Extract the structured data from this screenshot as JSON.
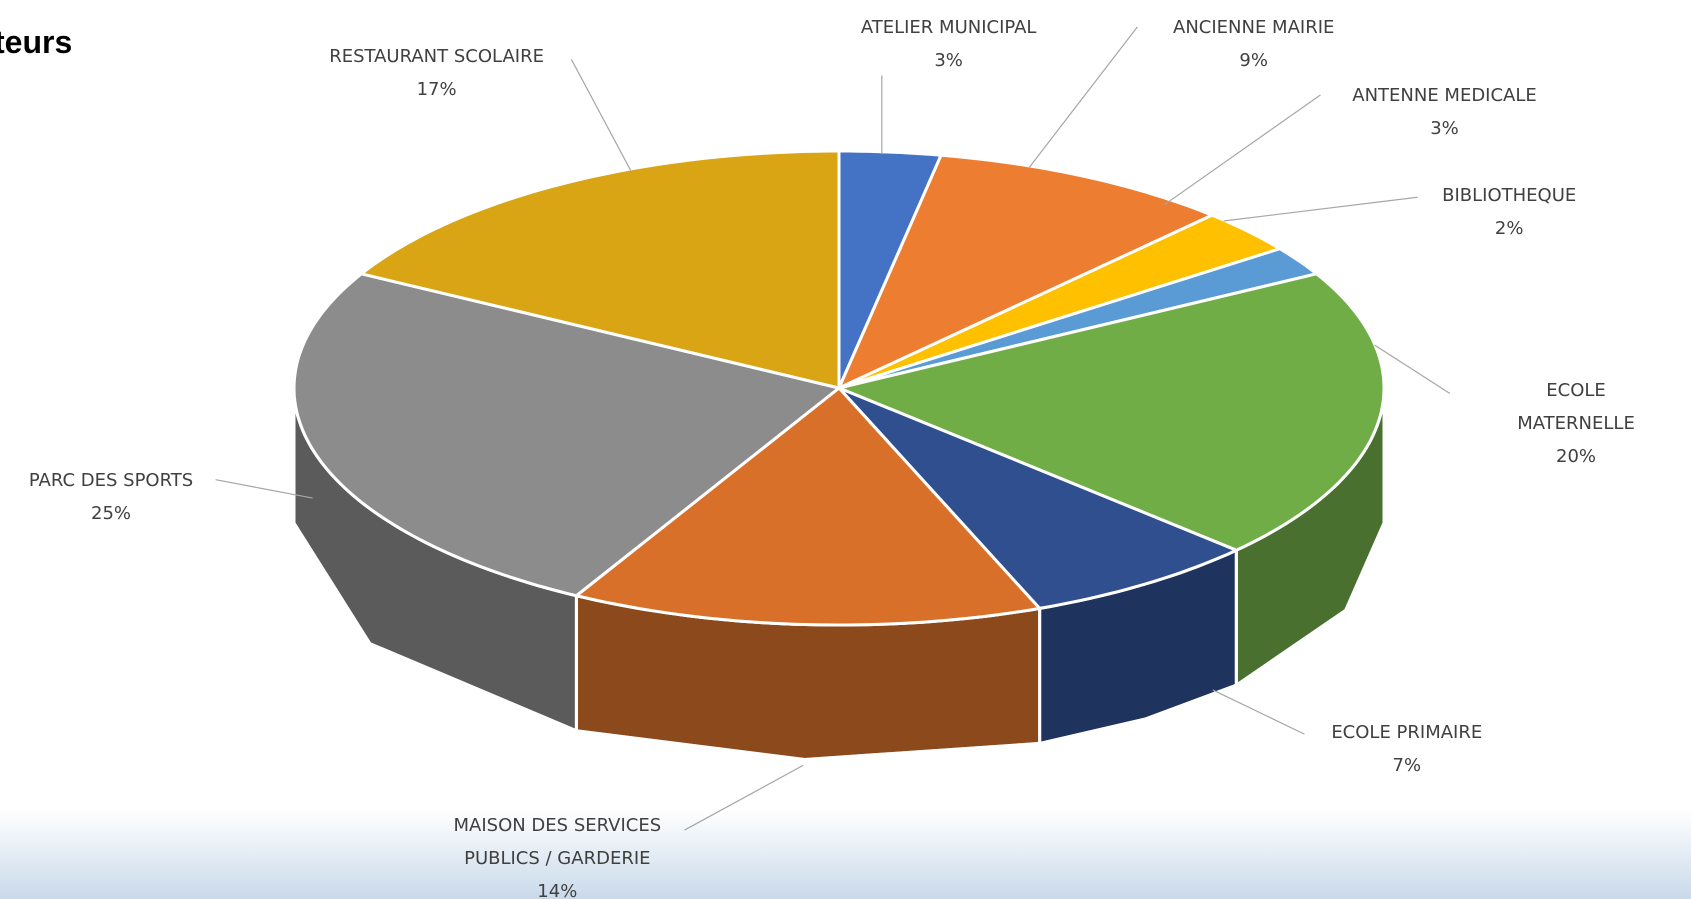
{
  "chart_data": {
    "type": "pie",
    "title": "teurs",
    "categories": [
      "ATELIER MUNICIPAL",
      "ANCIENNE MAIRIE",
      "ANTENNE MEDICALE",
      "BIBLIOTHEQUE",
      "ECOLE MATERNELLE",
      "ECOLE PRIMAIRE",
      "MAISON DES SERVICES PUBLICS / GARDERIE",
      "PARC DES SPORTS",
      "RESTAURANT SCOLAIRE"
    ],
    "values": [
      3,
      9,
      3,
      2,
      20,
      7,
      14,
      25,
      17
    ],
    "value_labels": [
      "3%",
      "9%",
      "3%",
      "2%",
      "20%",
      "7%",
      "14%",
      "25%",
      "17%"
    ],
    "colors": [
      "#4472c4",
      "#ed7d31",
      "#ffc000",
      "#5b9bd5",
      "#70ad47",
      "#2f4f8f",
      "#d8702a",
      "#8c8c8c",
      "#d9a514"
    ]
  }
}
